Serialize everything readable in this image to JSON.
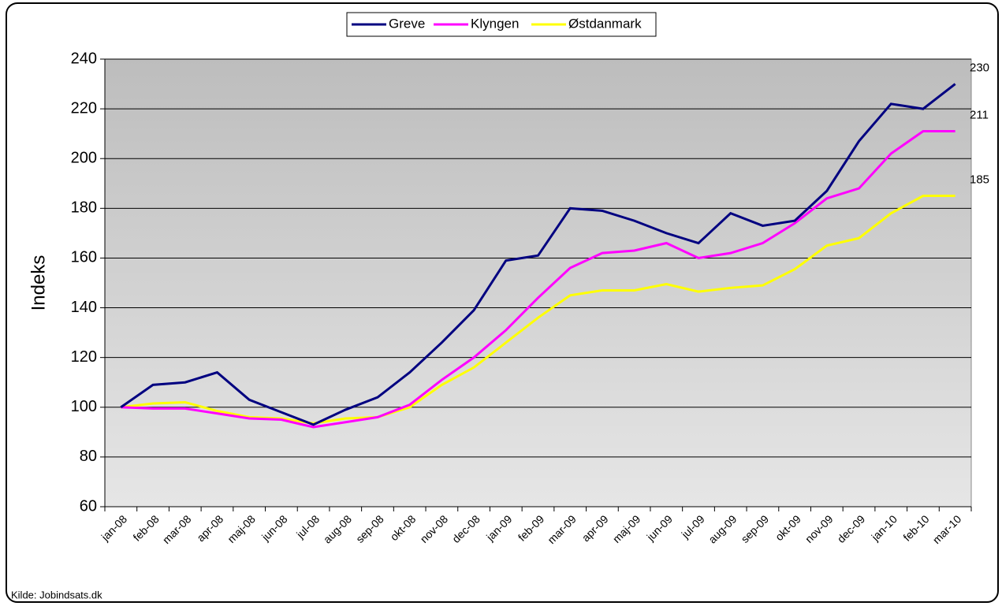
{
  "chart_data": {
    "type": "line",
    "y_label": "Indeks",
    "source": "Kilde: Jobindsats.dk",
    "categories": [
      "jan-08",
      "feb-08",
      "mar-08",
      "apr-08",
      "maj-08",
      "jun-08",
      "jul-08",
      "aug-08",
      "sep-08",
      "okt-08",
      "nov-08",
      "dec-08",
      "jan-09",
      "feb-09",
      "mar-09",
      "apr-09",
      "maj-09",
      "jun-09",
      "jul-09",
      "aug-09",
      "sep-09",
      "okt-09",
      "nov-09",
      "dec-09",
      "jan-10",
      "feb-10",
      "mar-10"
    ],
    "series": [
      {
        "name": "Greve",
        "color": "#000080",
        "values": [
          100,
          109,
          110,
          114,
          103,
          98,
          93,
          99,
          104,
          114,
          126,
          139,
          159,
          161,
          180,
          179,
          175,
          170,
          166,
          178,
          173,
          175,
          187,
          207,
          222,
          220,
          230
        ]
      },
      {
        "name": "Klyngen",
        "color": "#ff00ff",
        "values": [
          100,
          99.5,
          99.5,
          97.5,
          95.5,
          95,
          92,
          94,
          96,
          101,
          111,
          120,
          131,
          144,
          156,
          162,
          163,
          166,
          160,
          162,
          166,
          174,
          184,
          188,
          202,
          211,
          211
        ]
      },
      {
        "name": "Østdanmark",
        "color": "#ffff00",
        "values": [
          100,
          101.5,
          102,
          98.5,
          96,
          95.5,
          93.5,
          95.5,
          96,
          100,
          109,
          116,
          126,
          136,
          145,
          147,
          147,
          149.5,
          146.5,
          148,
          149,
          155.5,
          165,
          168,
          178,
          185,
          185
        ]
      }
    ],
    "ylim": [
      60,
      240
    ],
    "yticks": [
      60,
      80,
      100,
      120,
      140,
      160,
      180,
      200,
      220,
      240
    ],
    "grid": true
  }
}
